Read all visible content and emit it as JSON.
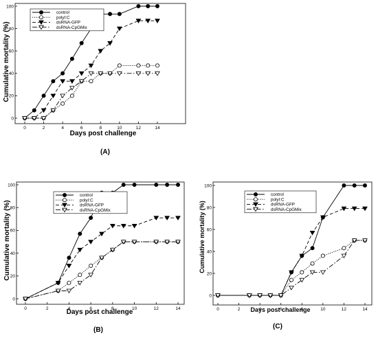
{
  "chart_data": [
    {
      "panel": "(A)",
      "type": "line",
      "xlabel": "Days post challenge",
      "ylabel": "Cumulative mortality (%)",
      "xlim": [
        0,
        14
      ],
      "ylim": [
        0,
        100
      ],
      "xticks": [
        0,
        2,
        4,
        6,
        8,
        10,
        12,
        14
      ],
      "yticks": [
        0,
        20,
        40,
        60,
        80,
        100
      ],
      "grid": false,
      "legend_position": "top-left",
      "series": [
        {
          "name": "control",
          "marker": "filled-circle",
          "line": "solid",
          "x": [
            0,
            1,
            2,
            3,
            4,
            5,
            6,
            7,
            8,
            9,
            10,
            12,
            13,
            14
          ],
          "y": [
            0,
            7,
            20,
            33,
            40,
            53,
            67,
            80,
            93,
            93,
            93,
            100,
            100,
            100
          ]
        },
        {
          "name": "polyI:C",
          "marker": "open-circle",
          "line": "dotted",
          "x": [
            0,
            1,
            2,
            3,
            4,
            5,
            6,
            7,
            8,
            9,
            10,
            12,
            13,
            14
          ],
          "y": [
            0,
            0,
            0,
            7,
            13,
            20,
            33,
            33,
            40,
            40,
            47,
            47,
            47,
            47
          ]
        },
        {
          "name": "dsRNA-GFP",
          "marker": "filled-triangle-down",
          "line": "dashed",
          "x": [
            0,
            1,
            2,
            3,
            4,
            5,
            6,
            7,
            8,
            9,
            10,
            12,
            13,
            14
          ],
          "y": [
            0,
            0,
            7,
            20,
            33,
            33,
            40,
            47,
            60,
            67,
            80,
            87,
            87,
            87
          ]
        },
        {
          "name": "dsRNA-CpGMix",
          "marker": "open-triangle-down",
          "line": "dash-dot",
          "x": [
            0,
            1,
            2,
            3,
            4,
            5,
            6,
            7,
            8,
            9,
            10,
            12,
            13,
            14
          ],
          "y": [
            0,
            0,
            0,
            7,
            20,
            27,
            33,
            40,
            40,
            40,
            40,
            40,
            40,
            40
          ]
        }
      ]
    },
    {
      "panel": "(B)",
      "type": "line",
      "xlabel": "Days post challenge",
      "ylabel": "Cumulative mortality (%)",
      "xlim": [
        0,
        14
      ],
      "ylim": [
        0,
        100
      ],
      "xticks": [
        0,
        2,
        4,
        6,
        8,
        10,
        12,
        14
      ],
      "yticks": [
        0,
        20,
        40,
        60,
        80,
        100
      ],
      "grid": false,
      "legend_position": "top-left",
      "series": [
        {
          "name": "control",
          "marker": "filled-circle",
          "line": "solid",
          "x": [
            0,
            3,
            4,
            5,
            6,
            7,
            8,
            9,
            10,
            12,
            13,
            14
          ],
          "y": [
            0,
            14,
            36,
            57,
            71,
            93,
            93,
            100,
            100,
            100,
            100,
            100
          ]
        },
        {
          "name": "polyI:C",
          "marker": "open-circle",
          "line": "dotted",
          "x": [
            0,
            3,
            4,
            5,
            6,
            7,
            8,
            9,
            10,
            12,
            13,
            14
          ],
          "y": [
            0,
            7,
            14,
            21,
            29,
            36,
            43,
            50,
            50,
            50,
            50,
            50
          ]
        },
        {
          "name": "dsRNA-GFP",
          "marker": "filled-triangle-down",
          "line": "dashed",
          "x": [
            0,
            3,
            4,
            5,
            6,
            7,
            8,
            9,
            10,
            12,
            13,
            14
          ],
          "y": [
            0,
            14,
            29,
            43,
            50,
            57,
            64,
            64,
            64,
            71,
            71,
            71
          ]
        },
        {
          "name": "dsRNA-CpGMix",
          "marker": "open-triangle-down",
          "line": "dash-dot",
          "x": [
            0,
            3,
            4,
            5,
            6,
            7,
            8,
            9,
            10,
            12,
            13,
            14
          ],
          "y": [
            0,
            7,
            7,
            14,
            21,
            36,
            43,
            50,
            50,
            50,
            50,
            50
          ]
        }
      ]
    },
    {
      "panel": "(C)",
      "type": "line",
      "xlabel": "Days post challenge",
      "ylabel": "Cumulative mortality (%)",
      "xlim": [
        0,
        14
      ],
      "ylim": [
        0,
        100
      ],
      "xticks": [
        0,
        2,
        4,
        6,
        8,
        10,
        12,
        14
      ],
      "yticks": [
        0,
        20,
        40,
        60,
        80,
        100
      ],
      "grid": false,
      "legend_position": "top-left",
      "series": [
        {
          "name": "control",
          "marker": "filled-circle",
          "line": "solid",
          "x": [
            0,
            3,
            4,
            5,
            6,
            7,
            8,
            9,
            10,
            12,
            13,
            14
          ],
          "y": [
            0,
            0,
            0,
            0,
            0,
            21,
            36,
            43,
            71,
            100,
            100,
            100
          ]
        },
        {
          "name": "polyI:C",
          "marker": "open-circle",
          "line": "dotted",
          "x": [
            0,
            3,
            4,
            5,
            6,
            7,
            8,
            9,
            10,
            12,
            13,
            14
          ],
          "y": [
            0,
            0,
            0,
            0,
            0,
            14,
            21,
            29,
            36,
            43,
            50,
            50
          ]
        },
        {
          "name": "dsRNA-GFP",
          "marker": "filled-triangle-down",
          "line": "dashed",
          "x": [
            0,
            3,
            4,
            5,
            6,
            7,
            8,
            9,
            10,
            12,
            13,
            14
          ],
          "y": [
            0,
            0,
            0,
            0,
            0,
            21,
            36,
            57,
            71,
            79,
            79,
            79
          ]
        },
        {
          "name": "dsRNA-CpGMix",
          "marker": "open-triangle-down",
          "line": "dash-dot",
          "x": [
            0,
            3,
            4,
            5,
            6,
            7,
            8,
            9,
            10,
            12,
            13,
            14
          ],
          "y": [
            0,
            0,
            0,
            0,
            0,
            7,
            14,
            21,
            21,
            36,
            50,
            50
          ]
        }
      ]
    }
  ]
}
